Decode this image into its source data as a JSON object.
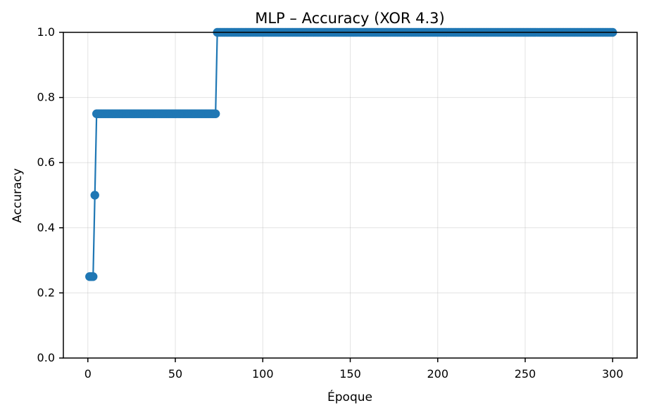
{
  "chart_data": {
    "type": "line",
    "title": "MLP – Accuracy (XOR 4.3)",
    "xlabel": "Époque",
    "ylabel": "Accuracy",
    "xlim": [
      -14,
      314
    ],
    "ylim": [
      0.0,
      1.0
    ],
    "grid": true,
    "line_style": "line-with-circle-markers",
    "colors": {
      "series": "#1f77b4",
      "axes": "#000000",
      "grid": "#b0b0b0",
      "background": "#ffffff"
    },
    "x_ticks": [
      {
        "value": 0,
        "label": "0"
      },
      {
        "value": 50,
        "label": "50"
      },
      {
        "value": 100,
        "label": "100"
      },
      {
        "value": 150,
        "label": "150"
      },
      {
        "value": 200,
        "label": "200"
      },
      {
        "value": 250,
        "label": "250"
      },
      {
        "value": 300,
        "label": "300"
      }
    ],
    "y_ticks": [
      {
        "value": 0.0,
        "label": "0.0"
      },
      {
        "value": 0.2,
        "label": "0.2"
      },
      {
        "value": 0.4,
        "label": "0.4"
      },
      {
        "value": 0.6,
        "label": "0.6"
      },
      {
        "value": 0.8,
        "label": "0.8"
      },
      {
        "value": 1.0,
        "label": "1.0"
      }
    ],
    "series": [
      {
        "segments": [
          {
            "x_start": 1,
            "x_end": 3,
            "y": 0.25
          },
          {
            "x_start": 4,
            "x_end": 4,
            "y": 0.5
          },
          {
            "x_start": 5,
            "x_end": 73,
            "y": 0.75
          },
          {
            "x_start": 74,
            "x_end": 300,
            "y": 1.0
          }
        ]
      }
    ]
  }
}
